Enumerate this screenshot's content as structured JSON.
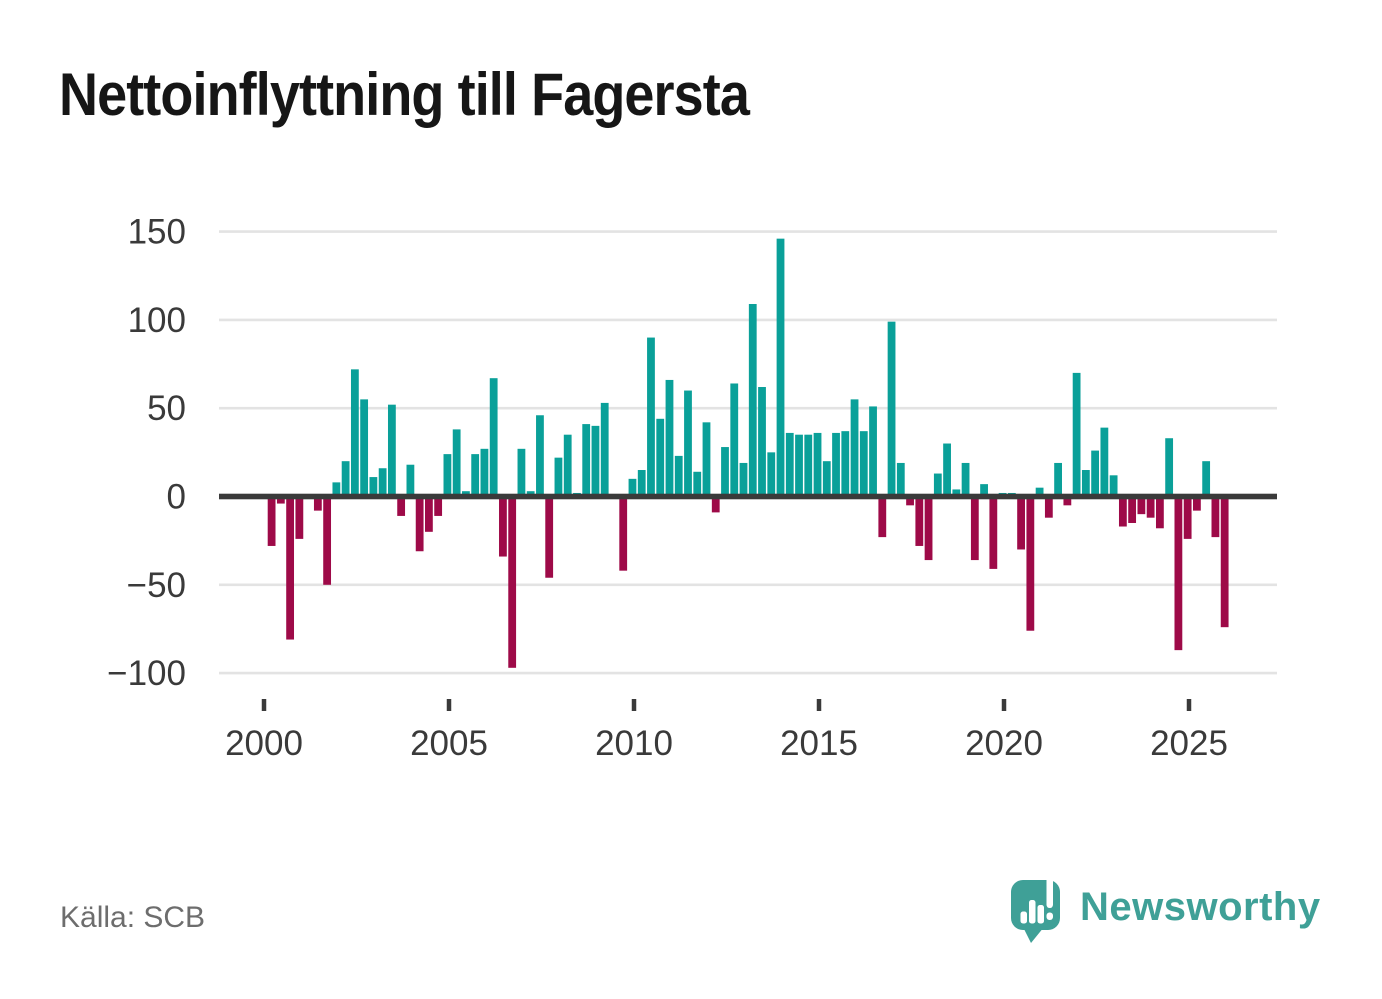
{
  "title": "Nettoinflyttning till Fagersta",
  "source": "Källa: SCB",
  "logo": {
    "text": "Newsworthy",
    "color": "#3fa097"
  },
  "chart_data": {
    "type": "bar",
    "title": "Nettoinflyttning till Fagersta",
    "xlabel": "",
    "ylabel": "",
    "period": "quarterly",
    "start_period": "2000 Q1",
    "end_period": "2025 Q4",
    "ylim": [
      -118,
      168
    ],
    "grid": "horizontal",
    "legend": "none",
    "positive_color": "#0aa099",
    "negative_color": "#9e0a48",
    "zero_line_color": "#3a3a3a",
    "grid_color": "#e3e3e3",
    "axis_label_color": "#3a3a3a",
    "y_ticks": [
      150,
      100,
      50,
      0,
      -50,
      -100
    ],
    "y_tick_labels": [
      "150",
      "100",
      "50",
      "0",
      "−50",
      "−100"
    ],
    "x_tick_years": [
      2000,
      2005,
      2010,
      2015,
      2020,
      2025
    ],
    "x_tick_labels": [
      "2000",
      "2005",
      "2010",
      "2015",
      "2020",
      "2025"
    ],
    "series": [
      {
        "year": 2000,
        "values": [
          -28,
          -4,
          -81,
          -24
        ]
      },
      {
        "year": 2001,
        "values": [
          0,
          -8,
          -50,
          8
        ]
      },
      {
        "year": 2002,
        "values": [
          20,
          72,
          55,
          11
        ]
      },
      {
        "year": 2003,
        "values": [
          16,
          52,
          -11,
          18
        ]
      },
      {
        "year": 2004,
        "values": [
          -31,
          -20,
          -11,
          24
        ]
      },
      {
        "year": 2005,
        "values": [
          38,
          3,
          24,
          27
        ]
      },
      {
        "year": 2006,
        "values": [
          67,
          -34,
          -97,
          27
        ]
      },
      {
        "year": 2007,
        "values": [
          3,
          46,
          -46,
          22
        ]
      },
      {
        "year": 2008,
        "values": [
          35,
          2,
          41,
          40
        ]
      },
      {
        "year": 2009,
        "values": [
          53,
          0,
          -42,
          10
        ]
      },
      {
        "year": 2010,
        "values": [
          15,
          90,
          44,
          66
        ]
      },
      {
        "year": 2011,
        "values": [
          23,
          60,
          14,
          42
        ]
      },
      {
        "year": 2012,
        "values": [
          -9,
          28,
          64,
          19
        ]
      },
      {
        "year": 2013,
        "values": [
          109,
          62,
          25,
          146
        ]
      },
      {
        "year": 2014,
        "values": [
          36,
          35,
          35,
          36
        ]
      },
      {
        "year": 2015,
        "values": [
          20,
          36,
          37,
          55
        ]
      },
      {
        "year": 2016,
        "values": [
          37,
          51,
          -23,
          99
        ]
      },
      {
        "year": 2017,
        "values": [
          19,
          -5,
          -28,
          -36
        ]
      },
      {
        "year": 2018,
        "values": [
          13,
          30,
          4,
          19
        ]
      },
      {
        "year": 2019,
        "values": [
          -36,
          7,
          -41,
          2
        ]
      },
      {
        "year": 2020,
        "values": [
          2,
          -30,
          -76,
          5
        ]
      },
      {
        "year": 2021,
        "values": [
          -12,
          19,
          -5,
          70
        ]
      },
      {
        "year": 2022,
        "values": [
          15,
          26,
          39,
          12
        ]
      },
      {
        "year": 2023,
        "values": [
          -17,
          -15,
          -10,
          -12
        ]
      },
      {
        "year": 2024,
        "values": [
          -18,
          33,
          -87,
          -24
        ]
      },
      {
        "year": 2025,
        "values": [
          -8,
          20,
          -23,
          -74
        ]
      }
    ]
  }
}
